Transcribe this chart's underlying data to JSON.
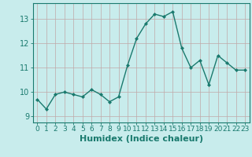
{
  "x": [
    0,
    1,
    2,
    3,
    4,
    5,
    6,
    7,
    8,
    9,
    10,
    11,
    12,
    13,
    14,
    15,
    16,
    17,
    18,
    19,
    20,
    21,
    22,
    23
  ],
  "y": [
    9.7,
    9.3,
    9.9,
    10.0,
    9.9,
    9.8,
    10.1,
    9.9,
    9.6,
    9.8,
    11.1,
    12.2,
    12.8,
    13.2,
    13.1,
    13.3,
    11.8,
    11.0,
    11.3,
    10.3,
    11.5,
    11.2,
    10.9,
    10.9
  ],
  "line_color": "#1a7a6e",
  "marker": "D",
  "marker_size": 2.0,
  "bg_color": "#c8ecec",
  "grid_color": "#c0a8a8",
  "xlabel": "Humidex (Indice chaleur)",
  "xlim": [
    -0.5,
    23.5
  ],
  "ylim": [
    8.75,
    13.65
  ],
  "yticks": [
    9,
    10,
    11,
    12,
    13
  ],
  "xticks": [
    0,
    1,
    2,
    3,
    4,
    5,
    6,
    7,
    8,
    9,
    10,
    11,
    12,
    13,
    14,
    15,
    16,
    17,
    18,
    19,
    20,
    21,
    22,
    23
  ],
  "xtick_labels": [
    "0",
    "1",
    "2",
    "3",
    "4",
    "5",
    "6",
    "7",
    "8",
    "9",
    "10",
    "11",
    "12",
    "13",
    "14",
    "15",
    "16",
    "17",
    "18",
    "19",
    "20",
    "21",
    "22",
    "23"
  ],
  "tick_color": "#1a7a6e",
  "label_color": "#1a7a6e",
  "spine_color": "#1a7a6e",
  "font_size_ticks": 6.5,
  "font_size_xlabel": 8.0,
  "linewidth": 1.0
}
